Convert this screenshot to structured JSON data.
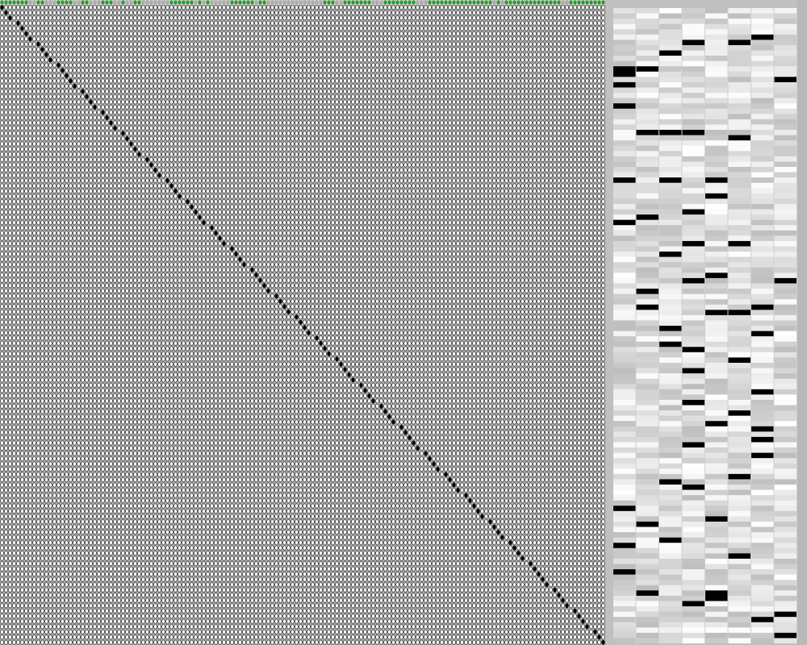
{
  "window": {
    "title": ""
  },
  "colors": {
    "dot_on": "#000000",
    "dot_off": "#ffffff",
    "indicator_on": "#1ea01e",
    "indicator_off": "#ababab",
    "panel_bg": "#c0c0c0",
    "grid_bg": "#ababab"
  },
  "grid": {
    "description_icon": "dot-matrix-icon",
    "cols": 150,
    "rows": 122,
    "diagonal": "top-left-to-bottom-right"
  },
  "indicators": {
    "count": 150,
    "states": [
      1,
      1,
      1,
      1,
      1,
      1,
      1,
      0,
      0,
      1,
      1,
      0,
      0,
      0,
      1,
      1,
      1,
      1,
      0,
      0,
      1,
      1,
      0,
      0,
      0,
      1,
      1,
      1,
      0,
      0,
      1,
      0,
      0,
      1,
      1,
      0,
      0,
      0,
      0,
      0,
      0,
      0,
      1,
      1,
      1,
      1,
      1,
      1,
      0,
      1,
      0,
      1,
      0,
      0,
      0,
      0,
      0,
      1,
      1,
      1,
      1,
      1,
      1,
      0,
      1,
      1,
      0,
      0,
      0,
      0,
      0,
      0,
      0,
      0,
      0,
      0,
      0,
      0,
      0,
      0,
      1,
      1,
      1,
      0,
      0,
      1,
      1,
      1,
      1,
      1,
      1,
      1,
      0,
      0,
      0,
      1,
      1,
      1,
      1,
      1,
      1,
      1,
      1,
      0,
      0,
      0,
      1,
      1,
      1,
      1,
      1,
      1,
      1,
      1,
      1,
      1,
      1,
      1,
      1,
      1,
      1,
      1,
      0,
      1,
      0,
      1,
      1,
      1,
      1,
      1,
      1,
      1,
      1,
      1,
      1,
      1,
      1,
      1,
      1,
      0,
      0,
      1,
      1,
      1,
      1,
      1,
      1,
      1,
      1,
      1
    ]
  },
  "heatmap_panel": {
    "columns": 8,
    "rows": 120
  }
}
